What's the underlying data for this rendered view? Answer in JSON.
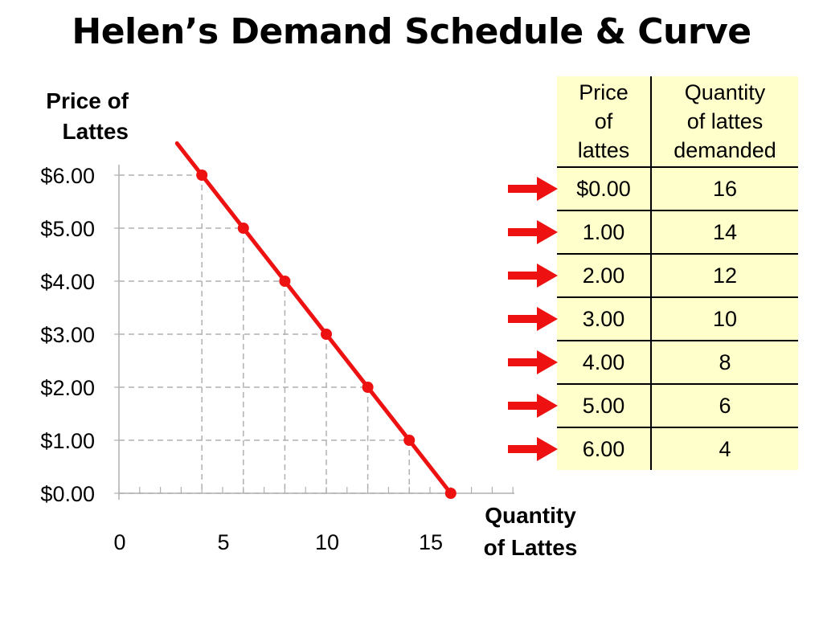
{
  "title": "Helen’s Demand Schedule & Curve",
  "y_axis_title": [
    "Price of",
    "Lattes"
  ],
  "x_axis_title": [
    "Quantity",
    "of Lattes"
  ],
  "table": {
    "headers": [
      [
        "Price",
        "of",
        "lattes"
      ],
      [
        "Quantity",
        "of lattes",
        "demanded"
      ]
    ],
    "rows": [
      [
        "$0.00",
        "16"
      ],
      [
        "1.00",
        "14"
      ],
      [
        "2.00",
        "12"
      ],
      [
        "3.00",
        "10"
      ],
      [
        "4.00",
        "8"
      ],
      [
        "5.00",
        "6"
      ],
      [
        "6.00",
        "4"
      ]
    ]
  },
  "colors": {
    "curve": "#ee1111",
    "arrow": "#ee1111",
    "table_bg": "#ffffcc",
    "grid": "#b0b0b0"
  },
  "chart_data": {
    "type": "line",
    "title": "Helen’s Demand Schedule & Curve",
    "xlabel": "Quantity of Lattes",
    "ylabel": "Price of Lattes",
    "xlim": [
      0,
      19
    ],
    "ylim": [
      0,
      6
    ],
    "x_ticks": [
      "0",
      "5",
      "10",
      "15"
    ],
    "x_tick_values": [
      0,
      5,
      10,
      15
    ],
    "y_ticks": [
      "$0.00",
      "$1.00",
      "$2.00",
      "$3.00",
      "$4.00",
      "$5.00",
      "$6.00"
    ],
    "y_tick_values": [
      0,
      1,
      2,
      3,
      4,
      5,
      6
    ],
    "grid": "dashed drop lines to each point",
    "series": [
      {
        "x": [
          4,
          6,
          8,
          10,
          12,
          14,
          16
        ],
        "y": [
          6,
          5,
          4,
          3,
          2,
          1,
          0
        ],
        "color": "#ee1111"
      }
    ]
  }
}
